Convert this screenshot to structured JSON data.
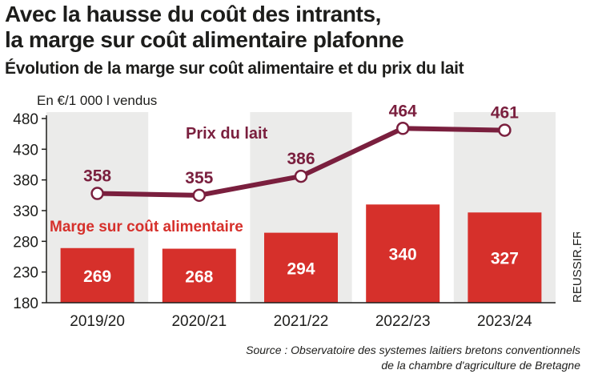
{
  "header": {
    "title_line1": "Avec la hausse du coût des intrants,",
    "title_line2": "la marge sur coût alimentaire plafonne",
    "subtitle": "Évolution de la marge sur coût alimentaire et du prix du lait",
    "unit_label": "En €/1 000 l vendus"
  },
  "chart_data": {
    "type": "bar+line",
    "categories": [
      "2019/20",
      "2020/21",
      "2021/22",
      "2022/23",
      "2023/24"
    ],
    "series": [
      {
        "name": "Marge sur coût alimentaire",
        "kind": "bar",
        "values": [
          269,
          268,
          294,
          340,
          327
        ],
        "color": "#d6302b"
      },
      {
        "name": "Prix du lait",
        "kind": "line",
        "values": [
          358,
          355,
          386,
          464,
          461
        ],
        "color": "#7a1f3e"
      }
    ],
    "y_axis": {
      "min": 180,
      "max": 480,
      "ticks": [
        180,
        230,
        280,
        330,
        380,
        430,
        480
      ]
    },
    "ylabel": "En €/1 000 l vendus",
    "background_band_color": "#ebebea",
    "grid": false
  },
  "footer": {
    "watermark": "REUSSIR.FR",
    "source_line1": "Source : Observatoire des systemes laitiers bretons conventionnels",
    "source_line2": "de la chambre d'agriculture de Bretagne"
  }
}
